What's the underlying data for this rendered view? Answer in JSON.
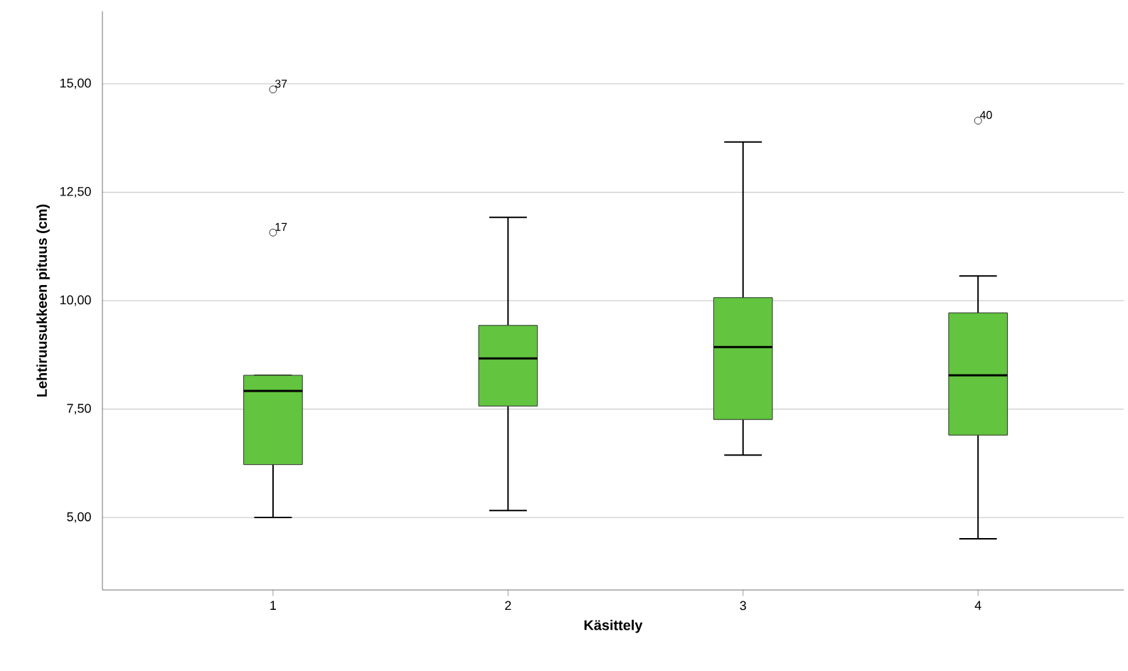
{
  "chart_data": {
    "type": "box",
    "xlabel": "Käsittely",
    "ylabel": "Lehtiruusukkeen pituus (cm)",
    "categories": [
      "1",
      "2",
      "3",
      "4"
    ],
    "boxes": [
      {
        "low": 5.0,
        "q1": 6.22,
        "median": 7.92,
        "q3": 8.28,
        "high": 8.28,
        "outliers": [
          11.57,
          14.87
        ]
      },
      {
        "low": 5.16,
        "q1": 7.57,
        "median": 8.67,
        "q3": 9.43,
        "high": 11.92
      },
      {
        "low": 6.44,
        "q1": 7.26,
        "median": 8.93,
        "q3": 10.07,
        "high": 13.66
      },
      {
        "low": 4.51,
        "q1": 6.9,
        "median": 8.28,
        "q3": 9.72,
        "high": 10.57,
        "outliers": [
          14.15
        ]
      }
    ],
    "color": "#62c43f",
    "ylim": [
      3.33,
      16.67
    ],
    "yticks": [
      {
        "value": 5,
        "label": "5,00"
      },
      {
        "value": 7.5,
        "label": "7,50"
      },
      {
        "value": 10,
        "label": "10,00"
      },
      {
        "value": 12.5,
        "label": "12,50"
      },
      {
        "value": 15,
        "label": "15,00"
      }
    ],
    "grid": "y",
    "annotations": [
      "17",
      "37",
      "40"
    ]
  }
}
